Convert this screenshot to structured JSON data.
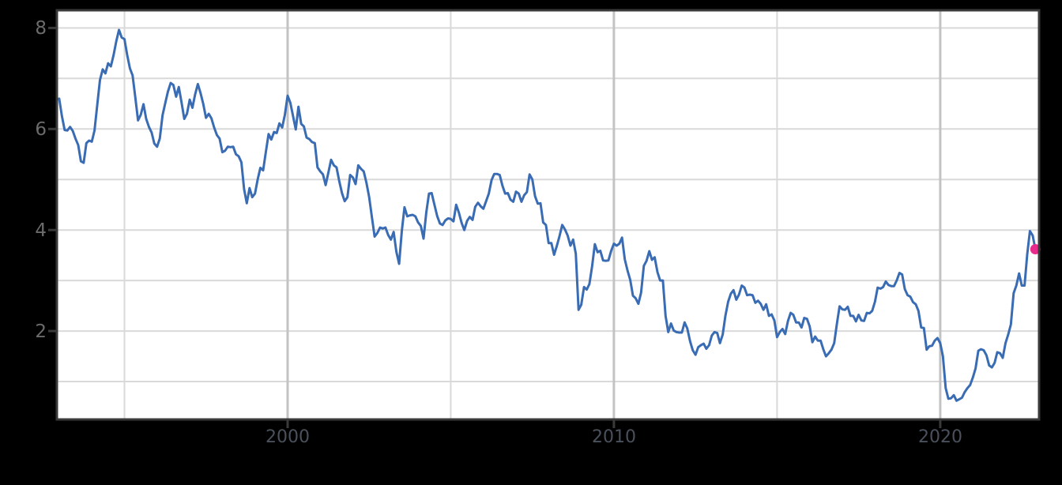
{
  "chart_data": {
    "type": "line",
    "grid": true,
    "legend": false,
    "x_axis": {
      "tick_labels": [
        "2000",
        "2010",
        "2020"
      ],
      "tick_years": [
        2000,
        2010,
        2020
      ],
      "grid_years": [
        1995,
        2000,
        2005,
        2010,
        2015,
        2020
      ],
      "range": [
        1992.93,
        2023.03
      ]
    },
    "y_axis": {
      "tick_labels": [
        "2",
        "4",
        "6",
        "8"
      ],
      "tick_values": [
        2,
        4,
        6,
        8
      ],
      "grid_values": [
        1,
        2,
        3,
        4,
        5,
        6,
        7,
        8
      ],
      "range": [
        0.25,
        8.35
      ]
    },
    "series": [
      {
        "name": "monthly-rate-series",
        "start_year": 1993,
        "frequency": "monthly",
        "values": [
          6.6,
          6.26,
          5.98,
          5.97,
          6.04,
          5.96,
          5.81,
          5.68,
          5.36,
          5.33,
          5.72,
          5.77,
          5.75,
          5.97,
          6.48,
          6.97,
          7.18,
          7.1,
          7.3,
          7.24,
          7.46,
          7.74,
          7.96,
          7.81,
          7.78,
          7.47,
          7.2,
          7.06,
          6.63,
          6.17,
          6.28,
          6.49,
          6.2,
          6.04,
          5.93,
          5.71,
          5.65,
          5.81,
          6.27,
          6.51,
          6.74,
          6.91,
          6.87,
          6.64,
          6.83,
          6.53,
          6.2,
          6.3,
          6.58,
          6.42,
          6.69,
          6.89,
          6.71,
          6.49,
          6.22,
          6.3,
          6.21,
          6.03,
          5.88,
          5.81,
          5.54,
          5.57,
          5.65,
          5.64,
          5.65,
          5.5,
          5.46,
          5.34,
          4.81,
          4.53,
          4.83,
          4.65,
          4.72,
          5.0,
          5.23,
          5.18,
          5.54,
          5.9,
          5.79,
          5.94,
          5.92,
          6.11,
          6.03,
          6.28,
          6.66,
          6.52,
          6.26,
          5.99,
          6.44,
          6.1,
          6.05,
          5.83,
          5.8,
          5.74,
          5.72,
          5.24,
          5.16,
          5.1,
          4.89,
          5.14,
          5.39,
          5.28,
          5.24,
          4.97,
          4.73,
          4.57,
          4.65,
          5.09,
          5.04,
          4.91,
          5.28,
          5.21,
          5.16,
          4.93,
          4.65,
          4.26,
          3.87,
          3.94,
          4.05,
          4.03,
          4.05,
          3.9,
          3.81,
          3.96,
          3.57,
          3.33,
          3.98,
          4.45,
          4.27,
          4.29,
          4.3,
          4.27,
          4.15,
          4.08,
          3.83,
          4.35,
          4.72,
          4.73,
          4.5,
          4.28,
          4.13,
          4.1,
          4.19,
          4.23,
          4.22,
          4.17,
          4.5,
          4.34,
          4.14,
          4.0,
          4.18,
          4.26,
          4.2,
          4.46,
          4.54,
          4.47,
          4.42,
          4.57,
          4.72,
          4.99,
          5.11,
          5.11,
          5.09,
          4.88,
          4.72,
          4.73,
          4.6,
          4.56,
          4.76,
          4.72,
          4.56,
          4.69,
          4.75,
          5.1,
          5.0,
          4.67,
          4.52,
          4.53,
          4.15,
          4.1,
          3.74,
          3.74,
          3.51,
          3.68,
          3.88,
          4.1,
          4.01,
          3.89,
          3.69,
          3.81,
          3.53,
          2.42,
          2.52,
          2.87,
          2.82,
          2.93,
          3.29,
          3.72,
          3.56,
          3.59,
          3.4,
          3.39,
          3.4,
          3.59,
          3.73,
          3.69,
          3.73,
          3.85,
          3.42,
          3.2,
          3.01,
          2.7,
          2.65,
          2.54,
          2.76,
          3.29,
          3.39,
          3.58,
          3.41,
          3.46,
          3.17,
          3.0,
          3.0,
          2.3,
          1.98,
          2.15,
          2.01,
          1.98,
          1.97,
          1.97,
          2.17,
          2.05,
          1.8,
          1.62,
          1.53,
          1.68,
          1.72,
          1.75,
          1.65,
          1.72,
          1.91,
          1.98,
          1.96,
          1.76,
          1.93,
          2.3,
          2.58,
          2.74,
          2.81,
          2.62,
          2.72,
          2.9,
          2.86,
          2.71,
          2.72,
          2.71,
          2.56,
          2.6,
          2.54,
          2.42,
          2.53,
          2.3,
          2.33,
          2.21,
          1.88,
          1.98,
          2.04,
          1.94,
          2.2,
          2.36,
          2.32,
          2.17,
          2.17,
          2.07,
          2.26,
          2.24,
          2.09,
          1.78,
          1.89,
          1.81,
          1.81,
          1.64,
          1.5,
          1.56,
          1.63,
          1.76,
          2.14,
          2.49,
          2.43,
          2.42,
          2.48,
          2.3,
          2.3,
          2.19,
          2.32,
          2.21,
          2.2,
          2.36,
          2.35,
          2.4,
          2.58,
          2.86,
          2.84,
          2.87,
          2.98,
          2.91,
          2.89,
          2.89,
          3.0,
          3.15,
          3.12,
          2.83,
          2.71,
          2.68,
          2.57,
          2.53,
          2.4,
          2.07,
          2.06,
          1.63,
          1.7,
          1.71,
          1.81,
          1.86,
          1.76,
          1.5,
          0.87,
          0.66,
          0.67,
          0.73,
          0.62,
          0.65,
          0.68,
          0.79,
          0.87,
          0.93,
          1.08,
          1.26,
          1.61,
          1.64,
          1.62,
          1.52,
          1.32,
          1.28,
          1.37,
          1.58,
          1.56,
          1.47,
          1.76,
          1.93,
          2.13,
          2.75,
          2.9,
          3.14,
          2.9,
          2.9,
          3.52,
          3.98,
          3.89,
          3.62
        ]
      }
    ],
    "end_dot": {
      "year": 2022.9167,
      "value": 3.62
    },
    "colors": {
      "page_bg": "#000000",
      "plot_bg": "#ffffff",
      "grid": "#d9d9d9",
      "grid_decade": "#c3c3c3",
      "axis": "#3a3a3a",
      "y_tick_label": "#6b6b6b",
      "x_tick_label": "#4a515c",
      "line": "#3a6cb4",
      "end_dot": "#e92c8c"
    }
  }
}
